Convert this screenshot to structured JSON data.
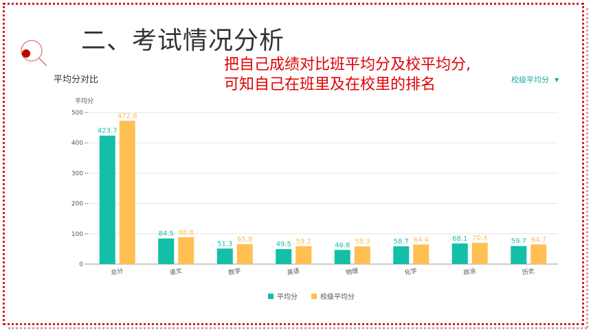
{
  "slide": {
    "title": "二、考试情况分析",
    "note_line1": "把自己成绩对比班平均分及校平均分,",
    "note_line2": "可知自己在班里及在校里的排名",
    "frame_color": "#d01e1e"
  },
  "controls": {
    "dropdown_label": "校级平均分",
    "dropdown_icon": "caret-down-icon"
  },
  "chart_data": {
    "type": "bar",
    "title": "平均分对比",
    "ylabel": "平均分",
    "xlabel": "",
    "ylim": [
      0,
      500
    ],
    "yticks": [
      0,
      100,
      200,
      300,
      400,
      500
    ],
    "grid": true,
    "legend_position": "bottom",
    "categories": [
      "总分",
      "语文",
      "数学",
      "英语",
      "物理",
      "化学",
      "政治",
      "历史"
    ],
    "series": [
      {
        "name": "平均分",
        "color": "#13bfa6",
        "values": [
          423.7,
          84.5,
          51.3,
          49.5,
          46.8,
          58.7,
          68.1,
          59.7
        ]
      },
      {
        "name": "校级平均分",
        "color": "#ffbf52",
        "values": [
          472.8,
          88.8,
          65.8,
          59.2,
          58.3,
          64.4,
          70.4,
          64.7
        ]
      }
    ]
  }
}
